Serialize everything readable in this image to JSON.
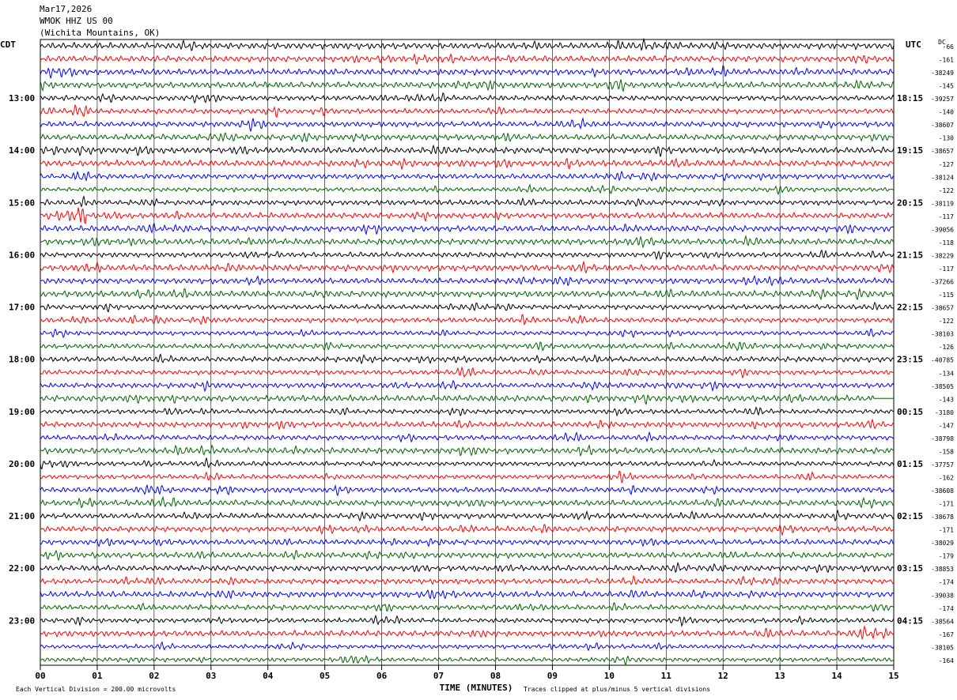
{
  "header": {
    "date": "Mar17,2026",
    "station": "WMOK HHZ US 00",
    "location": "(Wichita Mountains, OK)"
  },
  "labels": {
    "left_tz": "CDT",
    "right_tz": "UTC",
    "dc": "DC"
  },
  "footer": {
    "scale": "Each Vertical Division =  200.00 microvolts",
    "xlabel": "TIME (MINUTES)",
    "clip_note": "Traces clipped at plus/minus 5 vertical divisions"
  },
  "chart_data": {
    "type": "line",
    "title": "WMOK HHZ US 00",
    "xlabel": "TIME (MINUTES)",
    "x_ticks": [
      "00",
      "01",
      "02",
      "03",
      "04",
      "05",
      "06",
      "07",
      "08",
      "09",
      "10",
      "11",
      "12",
      "13",
      "14",
      "15"
    ],
    "xlim": [
      0,
      15
    ],
    "trace_minutes": 15,
    "trace_count": 48,
    "trace_colors": [
      "#000000",
      "#ff0000",
      "#0000ff",
      "#006400"
    ],
    "left_hour_labels": [
      "13:00",
      "14:00",
      "15:00",
      "16:00",
      "17:00",
      "18:00",
      "19:00",
      "20:00",
      "21:00",
      "22:00",
      "23:00"
    ],
    "right_hour_labels": [
      "18:15",
      "19:15",
      "20:15",
      "21:15",
      "22:15",
      "23:15",
      "00:15",
      "01:15",
      "02:15",
      "03:15",
      "04:15"
    ],
    "hour_label_first_trace": 4,
    "dc_offsets": [
      "-66",
      "-161",
      "-38249",
      "-145",
      "-39257",
      "-140",
      "-38607",
      "-130",
      "-38657",
      "-127",
      "-38124",
      "-122",
      "-38119",
      "-117",
      "-39056",
      "-118",
      "-38229",
      "-117",
      "-37266",
      "-115",
      "-38657",
      "-122",
      "-38103",
      "-126",
      "-40785",
      "-134",
      "-38505",
      "-143",
      "-3180",
      "-147",
      "-38798",
      "-158",
      "-37757",
      "-162",
      "-38608",
      "-171",
      "-38678",
      "-171",
      "-38029",
      "-179",
      "-38853",
      "-174",
      "-39038",
      "-174",
      "-38564",
      "-167",
      "-38105",
      "-164"
    ],
    "grid": true
  }
}
